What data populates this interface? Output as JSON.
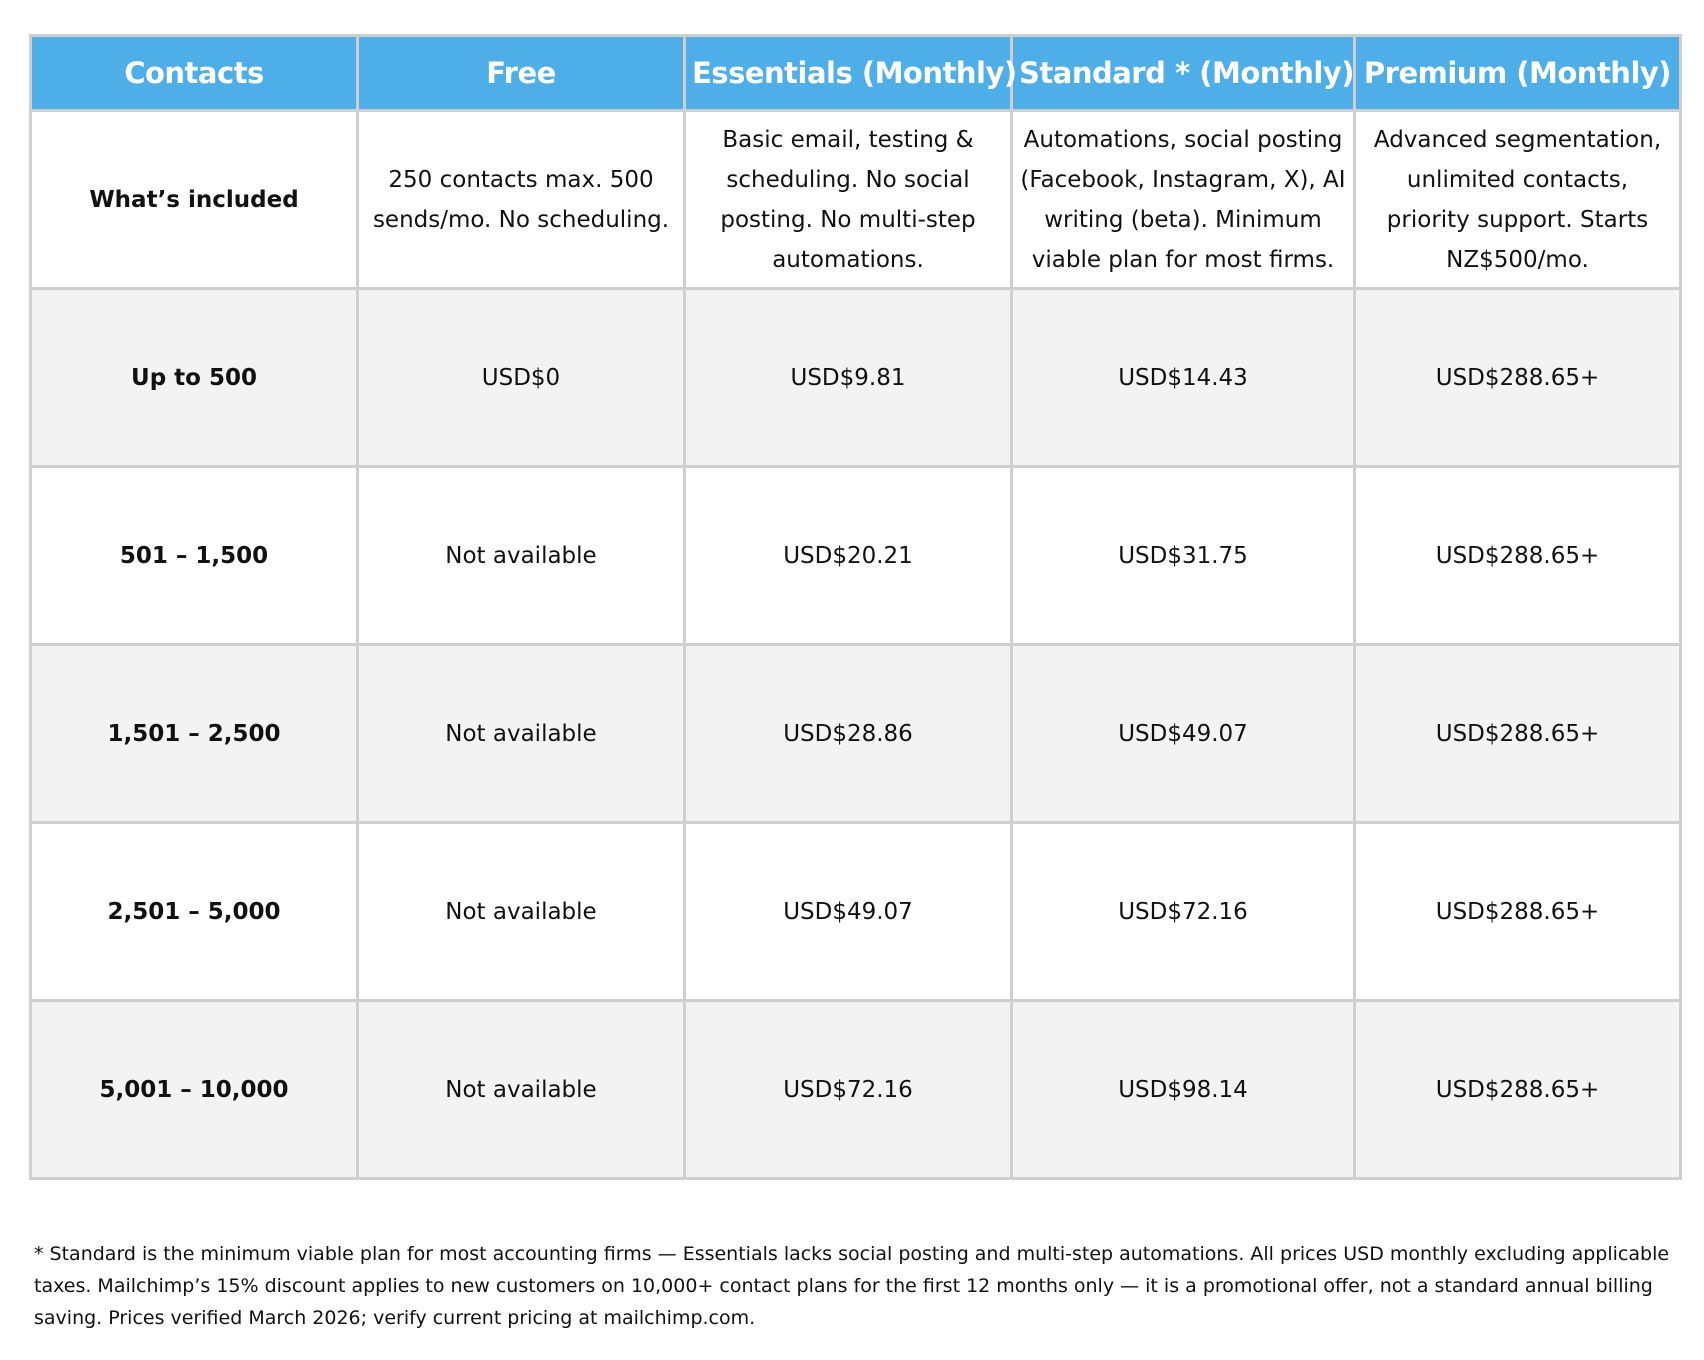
{
  "table": {
    "header": [
      "Contacts",
      "Free",
      "Essentials (Monthly)",
      "Standard * (Monthly)",
      "Premium (Monthly)"
    ],
    "rows": [
      [
        "What’s included",
        "250 contacts max. 500 sends/mo. No scheduling.",
        "Basic email, testing & scheduling. No social posting. No multi-step automations.",
        "Automations, social posting (Facebook, Instagram, X), AI writing (beta). Minimum viable plan for most firms.",
        "Advanced segmentation, unlimited contacts, priority support. Starts NZ$500/mo."
      ],
      [
        "Up to 500",
        "USD$0",
        "USD$9.81",
        "USD$14.43",
        "USD$288.65+"
      ],
      [
        "501 – 1,500",
        "Not available",
        "USD$20.21",
        "USD$31.75",
        "USD$288.65+"
      ],
      [
        "1,501 – 2,500",
        "Not available",
        "USD$28.86",
        "USD$49.07",
        "USD$288.65+"
      ],
      [
        "2,501 – 5,000",
        "Not available",
        "USD$49.07",
        "USD$72.16",
        "USD$288.65+"
      ],
      [
        "5,001 – 10,000",
        "Not available",
        "USD$72.16",
        "USD$98.14",
        "USD$288.65+"
      ]
    ]
  },
  "footnote": "* Standard is the minimum viable plan for most accounting firms — Essentials lacks social posting and multi-step automations. All prices USD monthly excluding applicable taxes. Mailchimp’s 15% discount applies to new customers on 10,000+ contact plans for the first 12 months only — it is a promotional offer, not a standard annual billing saving. Prices verified March 2026; verify current pricing at mailchimp.com."
}
